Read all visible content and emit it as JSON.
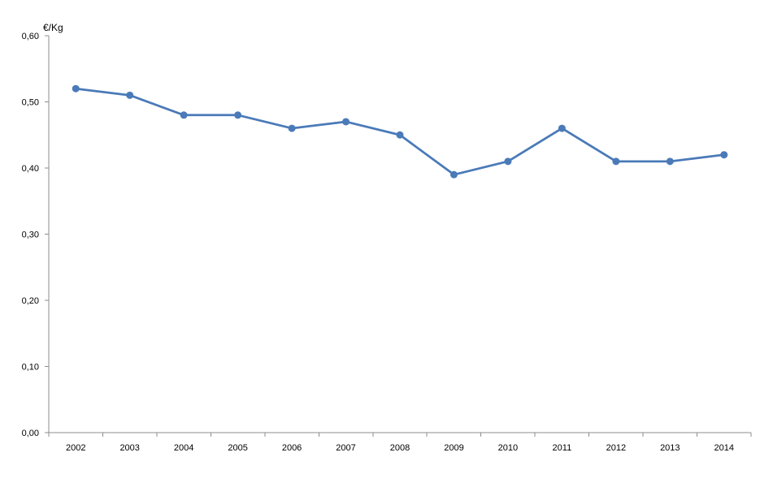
{
  "chart_data": {
    "type": "line",
    "title": "",
    "xlabel": "",
    "ylabel": "€/Kg",
    "categories": [
      "2002",
      "2003",
      "2004",
      "2005",
      "2006",
      "2007",
      "2008",
      "2009",
      "2010",
      "2011",
      "2012",
      "2013",
      "2014"
    ],
    "series": [
      {
        "values": [
          0.52,
          0.51,
          0.48,
          0.48,
          0.46,
          0.47,
          0.45,
          0.39,
          0.41,
          0.46,
          0.41,
          0.41,
          0.42
        ],
        "color": "#4a7ab8"
      }
    ],
    "yticks": [
      "0,00",
      "0,10",
      "0,20",
      "0,30",
      "0,40",
      "0,50",
      "0,60"
    ],
    "ylim": [
      0,
      0.6
    ],
    "grid": false,
    "legend": "none"
  }
}
